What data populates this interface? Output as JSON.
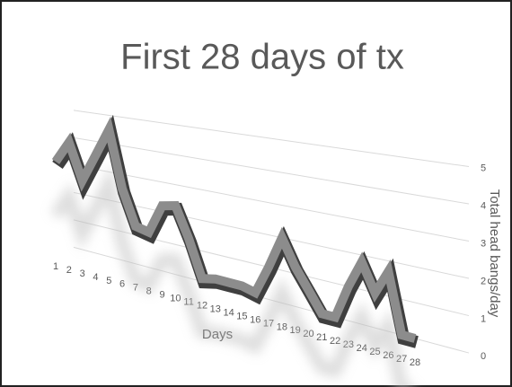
{
  "chart_data": {
    "type": "line3d",
    "title": "First 28 days of tx",
    "x_label": "Days",
    "y_label": "Total head bangs/day",
    "x": [
      1,
      2,
      3,
      4,
      5,
      6,
      7,
      8,
      9,
      10,
      11,
      12,
      13,
      14,
      15,
      16,
      17,
      18,
      19,
      20,
      21,
      22,
      23,
      24,
      25,
      26,
      27,
      28
    ],
    "values": [
      3,
      3.8,
      2.5,
      3.5,
      4.5,
      2.5,
      1.3,
      1.2,
      2.2,
      2.3,
      1.3,
      0.1,
      0.2,
      0.2,
      0.2,
      0.1,
      1,
      2,
      1.2,
      0.6,
      0,
      0,
      1,
      1.8,
      1,
      1.7,
      0,
      0
    ],
    "color": "#8c8c8c",
    "ylim": [
      0,
      5
    ],
    "yticks": [
      0,
      1,
      2,
      3,
      4,
      5
    ],
    "grid": true
  }
}
